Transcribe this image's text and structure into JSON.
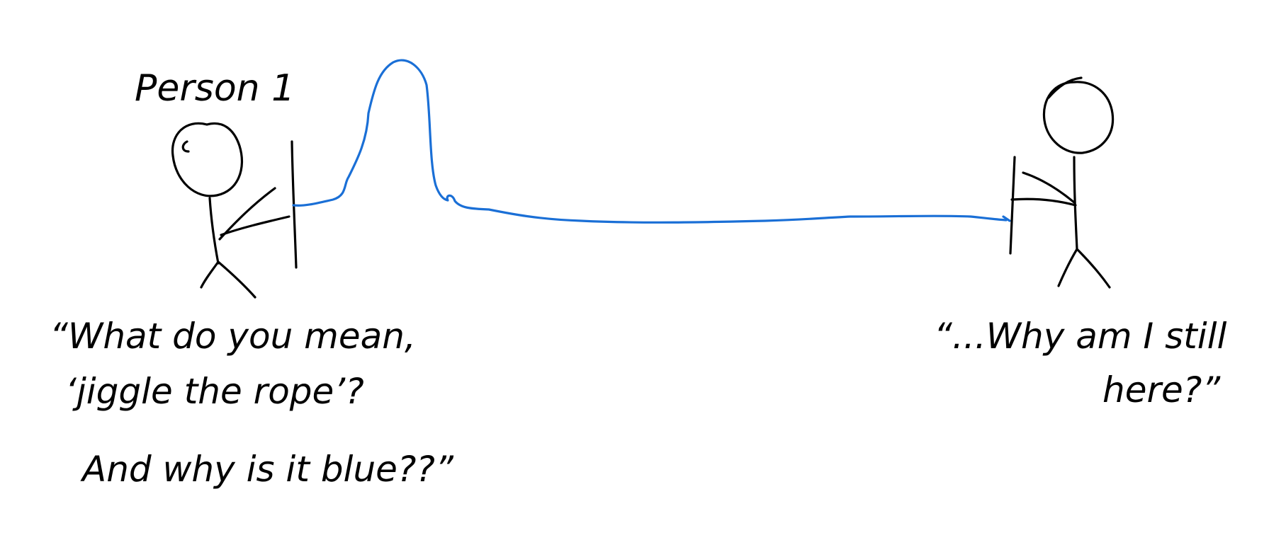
{
  "labels": {
    "person_1": "Person 1"
  },
  "quotes": {
    "left": [
      "“What do you mean,",
      "‘jiggle the rope’?",
      "And why is it blue??”"
    ],
    "right": [
      "“...Why am I still",
      "here?”"
    ]
  },
  "colors": {
    "ink": "#000000",
    "rope": "#1a6fd6",
    "background": "#ffffff"
  }
}
